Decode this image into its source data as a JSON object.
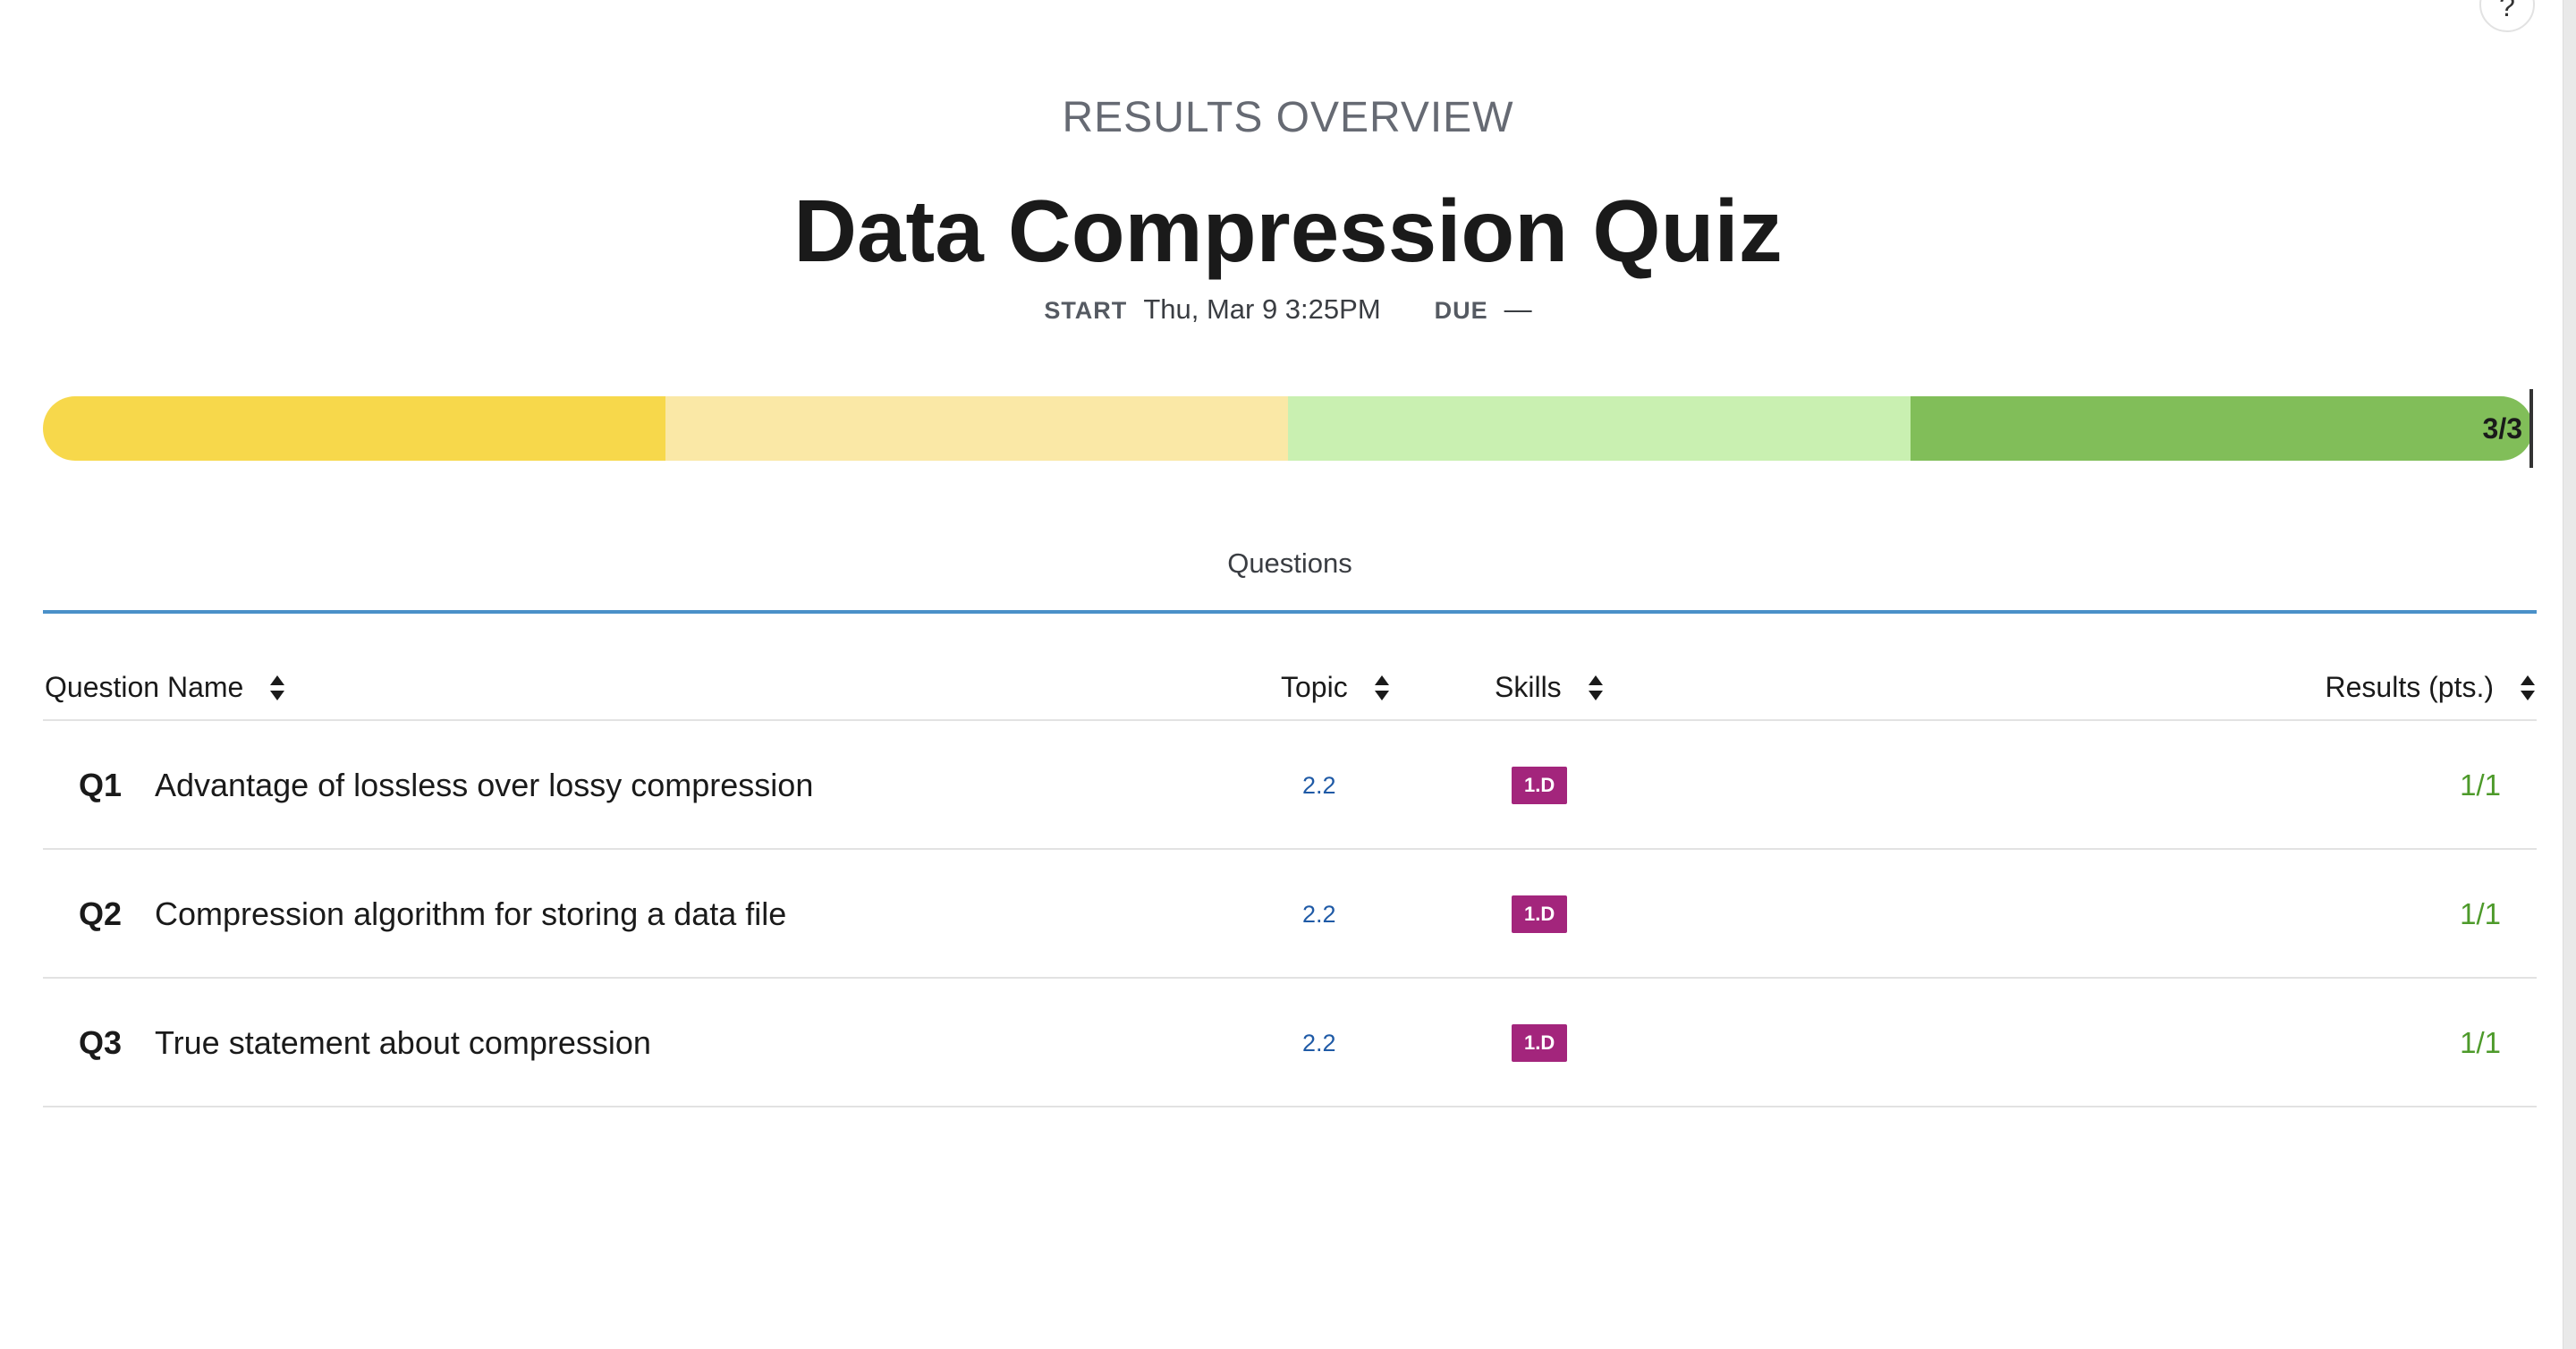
{
  "help": {
    "label": "?"
  },
  "header": {
    "overline": "RESULTS OVERVIEW",
    "title": "Data Compression Quiz"
  },
  "dates": {
    "start_label": "START",
    "start_value": "Thu, Mar 9 3:25PM",
    "due_label": "DUE",
    "due_value": "—"
  },
  "progress": {
    "label": "3/3",
    "score": 3,
    "total": 3,
    "colors": [
      "#f7d84b",
      "#fae8a6",
      "#c9f0b1",
      "#81be59"
    ]
  },
  "tabs": [
    {
      "label": "Questions",
      "active": true
    }
  ],
  "table": {
    "headers": {
      "question_name": "Question Name",
      "topic": "Topic",
      "skills": "Skills",
      "results": "Results (pts.)"
    },
    "rows": [
      {
        "num": "Q1",
        "name": "Advantage of lossless over lossy compression",
        "topic": "2.2",
        "skill": "1.D",
        "result": "1/1"
      },
      {
        "num": "Q2",
        "name": "Compression algorithm for storing a data file",
        "topic": "2.2",
        "skill": "1.D",
        "result": "1/1"
      },
      {
        "num": "Q3",
        "name": "True statement about compression",
        "topic": "2.2",
        "skill": "1.D",
        "result": "1/1"
      }
    ]
  },
  "colors": {
    "accent": "#4a90c8",
    "topic_link": "#1f5aa6",
    "skill_badge": "#a3257c",
    "result_ok": "#4d9a2a"
  }
}
